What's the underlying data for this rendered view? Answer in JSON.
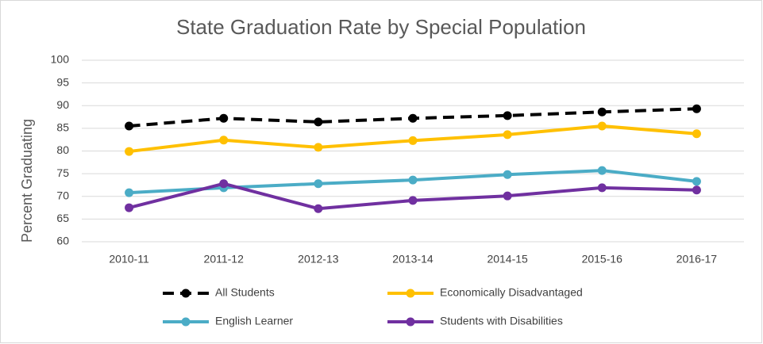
{
  "chart_data": {
    "type": "line",
    "title": "State Graduation Rate by Special Population",
    "y_label": "Percent Graduating",
    "categories": [
      "2010-11",
      "2011-12",
      "2012-13",
      "2013-14",
      "2014-15",
      "2015-16",
      "2016-17"
    ],
    "series": [
      {
        "name": "All Students",
        "color": "#000000",
        "dashed": true,
        "values": [
          85.5,
          87.2,
          86.4,
          87.2,
          87.8,
          88.6,
          89.3
        ]
      },
      {
        "name": "Economically Disadvantaged",
        "color": "#ffc000",
        "values": [
          79.9,
          82.4,
          80.8,
          82.3,
          83.6,
          85.5,
          83.8
        ]
      },
      {
        "name": "English Learner",
        "color": "#4bacc6",
        "values": [
          70.8,
          71.9,
          72.8,
          73.6,
          74.8,
          75.7,
          73.3
        ]
      },
      {
        "name": "Students with Disabilities",
        "color": "#7030a0",
        "values": [
          67.5,
          72.8,
          67.3,
          69.1,
          70.1,
          71.9,
          71.4
        ]
      }
    ],
    "ylim": [
      60,
      100
    ],
    "yticks": [
      60,
      65,
      70,
      75,
      80,
      85,
      90,
      95,
      100
    ],
    "grid": true
  }
}
